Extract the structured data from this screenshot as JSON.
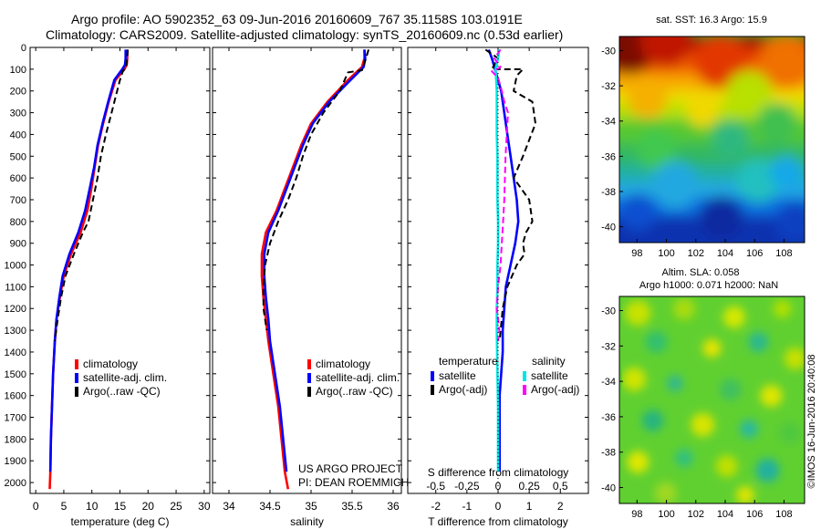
{
  "header": {
    "line1": "Argo profile: AO 5902352_63 09-Jun-2016 20160609_767 35.1158S 103.0191E",
    "line2": "Climatology: CARS2009. Satellite-adjusted climatology: synTS_20160609.nc (0.53d earlier)"
  },
  "colors": {
    "clim": "#ff0000",
    "sat": "#0000ff",
    "argo": "#000000",
    "sal_sat": "#00e5e5",
    "sal_argo": "#ff00ff"
  },
  "chart_data": [
    {
      "type": "line",
      "title": "Temperature profile",
      "xlabel": "temperature (deg C)",
      "xlim": [
        -1,
        31
      ],
      "ylim": [
        2050,
        0
      ],
      "xticks": [
        0,
        5,
        10,
        15,
        20,
        25,
        30
      ],
      "yticks": [
        0,
        100,
        200,
        300,
        400,
        500,
        600,
        700,
        800,
        900,
        1000,
        1100,
        1200,
        1300,
        1400,
        1500,
        1600,
        1700,
        1800,
        1900,
        2000
      ],
      "legend": [
        "climatology",
        "satellite-adj. clim.",
        "Argo(..raw -QC)"
      ],
      "series": [
        {
          "name": "climatology",
          "color": "#ff0000",
          "x": [
            16.3,
            16.3,
            16.2,
            15.8,
            14.2,
            13.0,
            12.0,
            11.1,
            10.5,
            9.9,
            9.2,
            8.0,
            6.3,
            5.0,
            4.3,
            3.7,
            3.4,
            3.1,
            2.9,
            2.7,
            2.6,
            2.5
          ],
          "y": [
            10,
            50,
            80,
            100,
            150,
            250,
            350,
            450,
            550,
            650,
            750,
            850,
            950,
            1050,
            1150,
            1250,
            1350,
            1500,
            1650,
            1800,
            1950,
            2030
          ]
        },
        {
          "name": "satellite-adj. clim.",
          "color": "#0000ff",
          "x": [
            16.0,
            16.0,
            15.9,
            15.4,
            14.0,
            12.9,
            11.9,
            11.0,
            10.4,
            9.6,
            8.8,
            7.6,
            6.0,
            4.8,
            4.2,
            3.7,
            3.4,
            3.1,
            2.9,
            2.7,
            2.6
          ],
          "y": [
            10,
            50,
            80,
            100,
            150,
            250,
            350,
            450,
            550,
            650,
            750,
            850,
            950,
            1050,
            1150,
            1250,
            1350,
            1500,
            1650,
            1800,
            1950
          ]
        },
        {
          "name": "Argo(..raw -QC)",
          "color": "#000000",
          "dash": true,
          "x": [
            16.4,
            16.3,
            16.1,
            15.5,
            15.0,
            14.5,
            13.5,
            12.5,
            11.6,
            11.0,
            10.2,
            9.4,
            8.4,
            6.8,
            5.3,
            4.5,
            3.9,
            3.4
          ],
          "y": [
            10,
            50,
            90,
            110,
            150,
            200,
            300,
            400,
            500,
            600,
            700,
            800,
            850,
            950,
            1050,
            1150,
            1250,
            1350
          ]
        }
      ]
    },
    {
      "type": "line",
      "title": "Salinity profile",
      "xlabel": "salinity",
      "xlim": [
        33.8,
        36.1
      ],
      "ylim": [
        2050,
        0
      ],
      "xticks": [
        34,
        34.5,
        35,
        35.5,
        36
      ],
      "legend": [
        "climatology",
        "satellite-adj. clim.",
        "Argo(..raw -QC)"
      ],
      "annotation": [
        "US ARGO PROJECT",
        "PI: DEAN ROEMMICH"
      ],
      "series": [
        {
          "name": "climatology",
          "color": "#ff0000",
          "x": [
            35.65,
            35.65,
            35.62,
            35.45,
            35.2,
            35.0,
            34.88,
            34.78,
            34.68,
            34.58,
            34.45,
            34.4,
            34.4,
            34.42,
            34.45,
            34.48,
            34.52,
            34.56,
            34.6,
            34.64,
            34.68,
            34.72
          ],
          "y": [
            10,
            50,
            90,
            150,
            250,
            350,
            450,
            550,
            650,
            750,
            850,
            950,
            1050,
            1150,
            1250,
            1350,
            1450,
            1550,
            1650,
            1800,
            1950,
            2030
          ]
        },
        {
          "name": "satellite-adj. clim.",
          "color": "#0000ff",
          "x": [
            35.65,
            35.66,
            35.64,
            35.48,
            35.22,
            35.02,
            34.9,
            34.8,
            34.7,
            34.6,
            34.48,
            34.43,
            34.43,
            34.45,
            34.48,
            34.5,
            34.54,
            34.58,
            34.62,
            34.66,
            34.7
          ],
          "y": [
            10,
            50,
            90,
            150,
            250,
            350,
            450,
            550,
            650,
            750,
            850,
            950,
            1050,
            1150,
            1250,
            1350,
            1450,
            1550,
            1650,
            1800,
            1950
          ]
        },
        {
          "name": "Argo(..raw -QC)",
          "color": "#000000",
          "dash": true,
          "x": [
            35.7,
            35.67,
            35.62,
            35.45,
            35.35,
            35.15,
            35.0,
            34.9,
            34.82,
            34.72,
            34.6,
            34.5,
            34.44,
            34.42,
            34.42,
            34.46
          ],
          "y": [
            10,
            50,
            105,
            115,
            200,
            300,
            400,
            500,
            600,
            700,
            800,
            900,
            1000,
            1100,
            1200,
            1300
          ]
        }
      ]
    },
    {
      "type": "line",
      "title": "Difference from climatology",
      "xlabel": "T difference from climatology",
      "xlabel2": "S difference from climatology",
      "xlim": [
        -2.9,
        2.9
      ],
      "x2lim": [
        -0.725,
        0.725
      ],
      "ylim": [
        2050,
        0
      ],
      "xticks": [
        -2,
        -1,
        0,
        1,
        2
      ],
      "x2ticks": [
        -0.5,
        -0.25,
        0,
        0.25,
        0.5
      ],
      "legend_headers": [
        "temperature",
        "salinity"
      ],
      "legend": [
        "satellite",
        "Argo(-adj)",
        "satellite",
        "Argo(-adj)"
      ],
      "series": [
        {
          "name": "temperature satellite",
          "color": "#0000ff",
          "x": [
            -0.3,
            -0.2,
            -0.1,
            0.1,
            0.2,
            0.3,
            0.4,
            0.5,
            0.6,
            0.65,
            0.6,
            0.55,
            0.4,
            0.25,
            0.2,
            0.15,
            0.15,
            0.1,
            0.05,
            0.05,
            0.05
          ],
          "y": [
            10,
            50,
            100,
            200,
            300,
            400,
            500,
            600,
            700,
            800,
            850,
            900,
            1000,
            1100,
            1200,
            1300,
            1400,
            1500,
            1600,
            1800,
            1950
          ]
        },
        {
          "name": "temperature Argo(-adj)",
          "color": "#000000",
          "dash": true,
          "x": [
            -0.4,
            0,
            -0.2,
            0.8,
            0.6,
            0.5,
            1.1,
            1.2,
            0.8,
            0.5,
            1.0,
            1.1,
            0.9,
            0.8,
            0.85,
            0.6,
            0.3,
            0.15,
            0.05
          ],
          "y": [
            10,
            50,
            100,
            100,
            130,
            200,
            250,
            350,
            500,
            600,
            700,
            800,
            850,
            900,
            950,
            1000,
            1100,
            1200,
            1350
          ]
        },
        {
          "name": "salinity satellite",
          "color": "#00e5e5",
          "x": [
            0.01,
            0.0,
            -0.02,
            -0.01,
            -0.01,
            -0.01,
            -0.005,
            -0.005,
            -0.005,
            0,
            0,
            -0.005,
            -0.005,
            -0.01,
            -0.01,
            -0.005,
            0,
            0,
            0
          ],
          "y": [
            10,
            50,
            100,
            200,
            300,
            400,
            500,
            600,
            700,
            800,
            900,
            1000,
            1100,
            1200,
            1300,
            1500,
            1650,
            1800,
            1950
          ]
        },
        {
          "name": "salinity Argo(-adj)",
          "color": "#ff00ff",
          "dash": true,
          "x": [
            0.02,
            -0.03,
            0.02,
            -0.01,
            -0.05,
            0.0,
            0.03,
            0.05,
            0.08,
            0.06,
            0.05,
            0.04,
            0.03,
            0.02,
            0.0,
            -0.01,
            0.01,
            0.0
          ],
          "y": [
            10,
            50,
            90,
            100,
            110,
            140,
            200,
            250,
            300,
            500,
            700,
            800,
            900,
            1000,
            1100,
            1200,
            1300,
            1350
          ]
        }
      ]
    },
    {
      "type": "heatmap",
      "title": "sat. SST: 16.3 Argo: 15.9",
      "xticks": [
        98,
        100,
        102,
        104,
        106,
        108
      ],
      "yticks": [
        -30,
        -32,
        -34,
        -36,
        -38,
        -40
      ],
      "xlim": [
        96.8,
        109.4
      ],
      "ylim": [
        -40.9,
        -29.2
      ]
    },
    {
      "type": "heatmap",
      "title": "Altim. SLA: 0.058",
      "subtitle": "Argo h1000: 0.071 h2000: NaN",
      "xticks": [
        98,
        100,
        102,
        104,
        106,
        108
      ],
      "yticks": [
        -30,
        -32,
        -34,
        -36,
        -38,
        -40
      ],
      "xlim": [
        96.8,
        109.4
      ],
      "ylim": [
        -40.9,
        -29.2
      ]
    }
  ],
  "credit": "©IMOS 16-Jun-2016 20:40:08"
}
